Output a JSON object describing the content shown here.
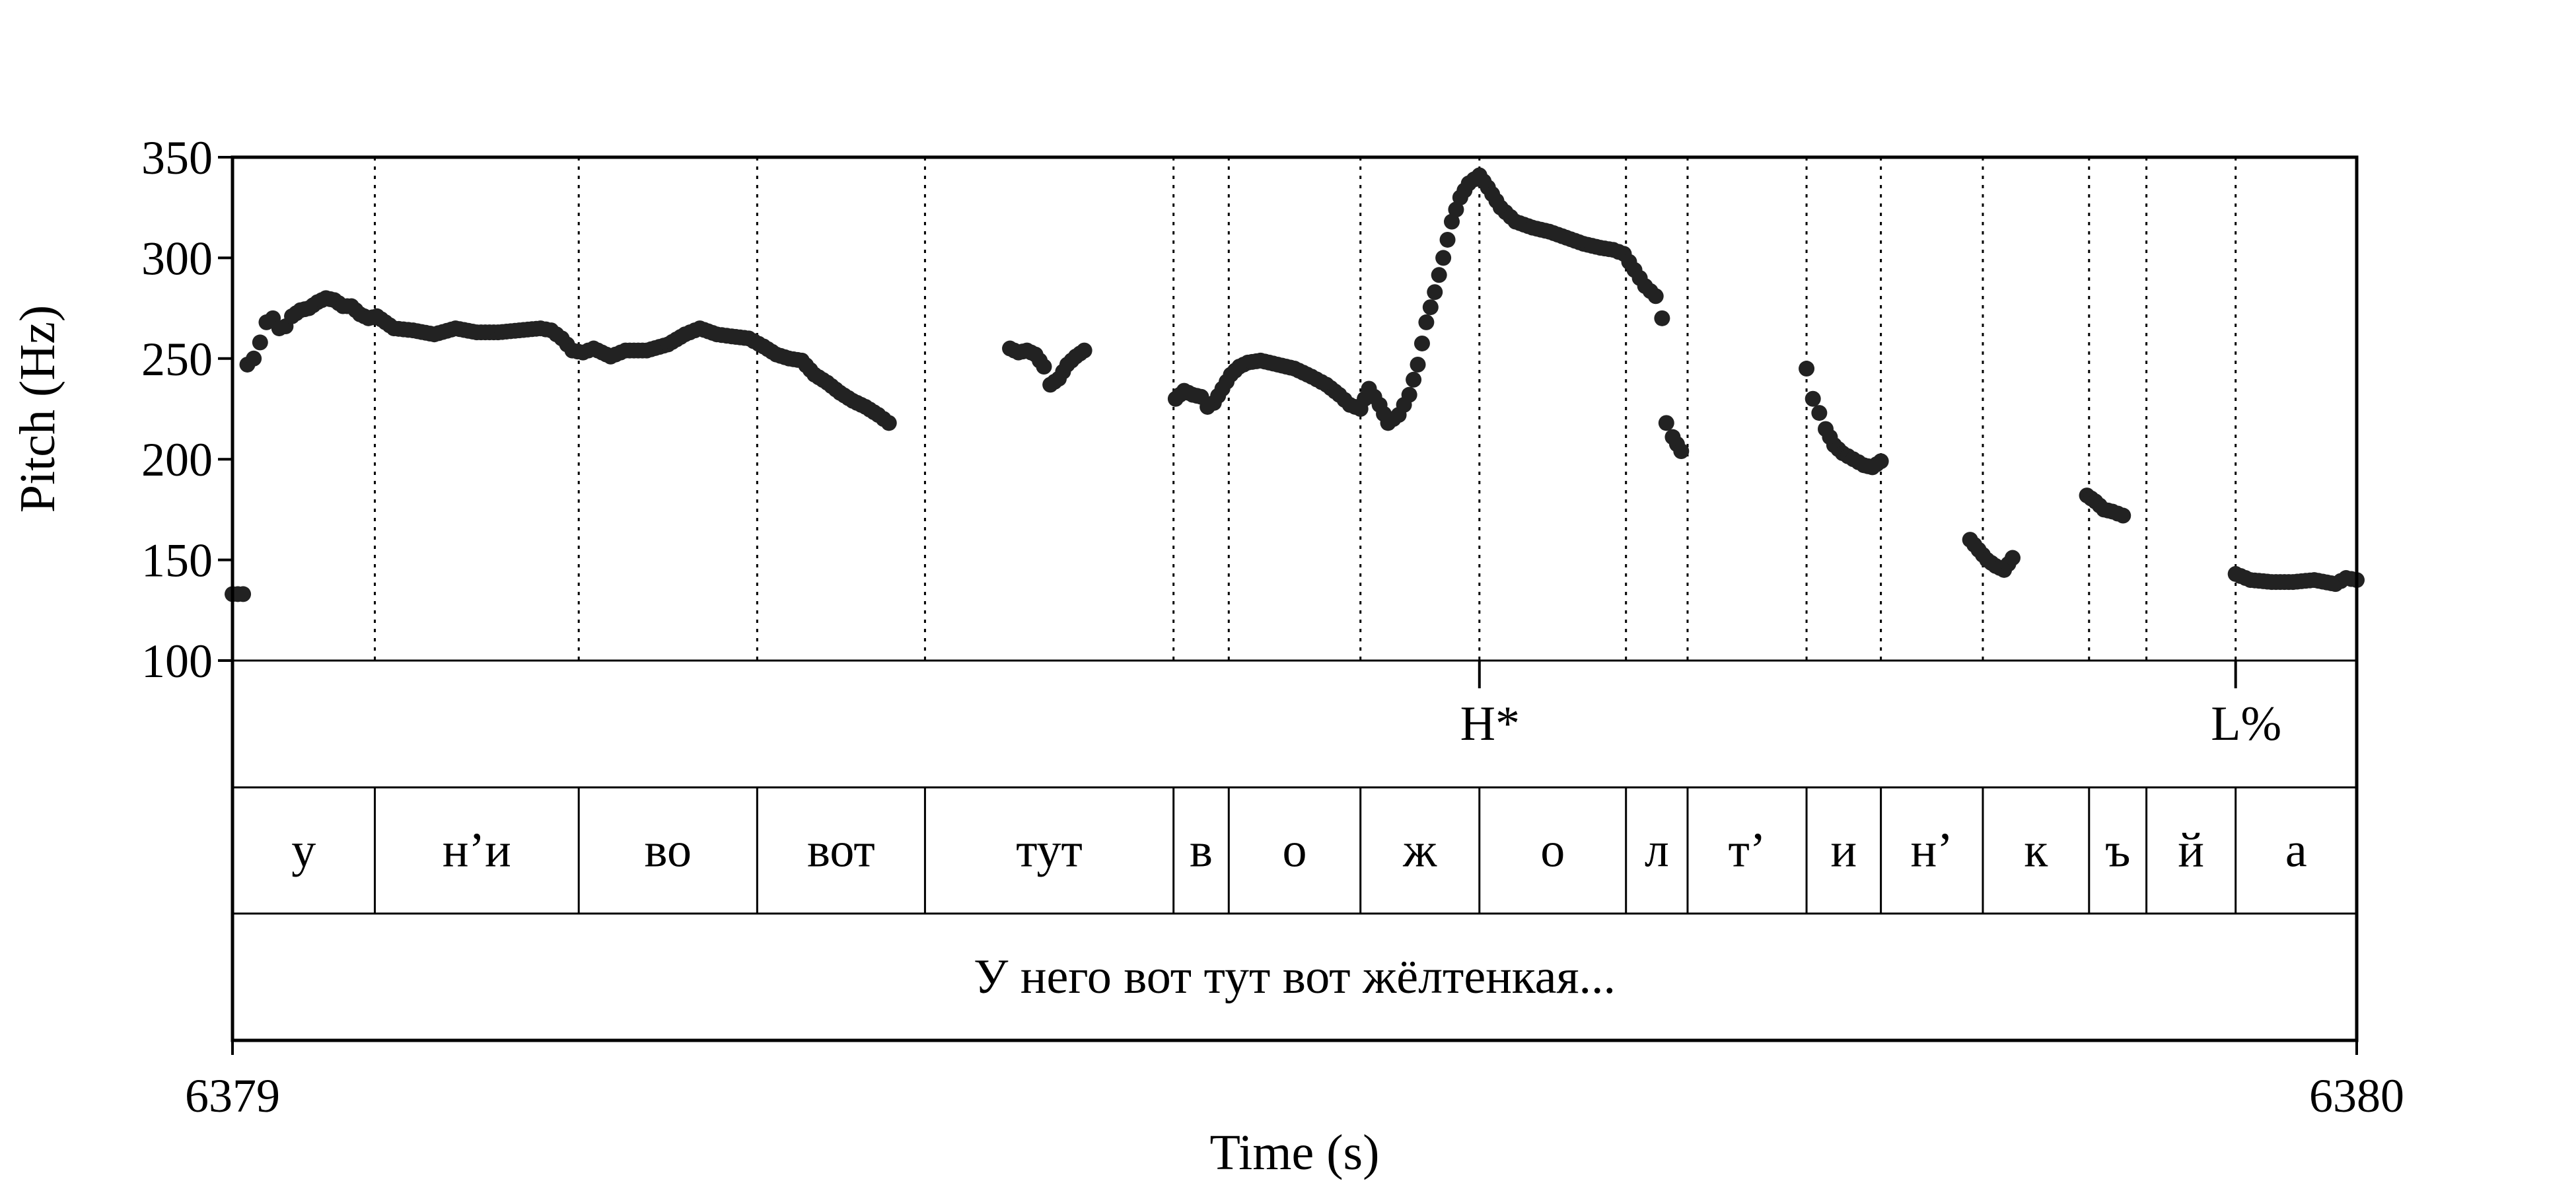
{
  "chart_data": {
    "type": "scatter",
    "xlabel": "Time (s)",
    "ylabel": "Pitch (Hz)",
    "xlim": [
      6379,
      6380
    ],
    "ylim": [
      100,
      350
    ],
    "x_ticks": [
      "6379",
      "6380"
    ],
    "y_ticks": [
      100,
      150,
      200,
      250,
      300,
      350
    ],
    "tones": [
      {
        "label": "H*",
        "t": 6379.587
      },
      {
        "label": "L%",
        "t": 6379.943
      }
    ],
    "segments": [
      {
        "label": "у",
        "start": 6379.0,
        "end": 6379.067
      },
      {
        "label": "н’и",
        "start": 6379.067,
        "end": 6379.163
      },
      {
        "label": "во",
        "start": 6379.163,
        "end": 6379.247
      },
      {
        "label": "вот",
        "start": 6379.247,
        "end": 6379.326
      },
      {
        "label": "тут",
        "start": 6379.326,
        "end": 6379.443
      },
      {
        "label": "в",
        "start": 6379.443,
        "end": 6379.469
      },
      {
        "label": "о",
        "start": 6379.469,
        "end": 6379.531
      },
      {
        "label": "ж",
        "start": 6379.531,
        "end": 6379.587
      },
      {
        "label": "о",
        "start": 6379.587,
        "end": 6379.656
      },
      {
        "label": "л",
        "start": 6379.656,
        "end": 6379.685
      },
      {
        "label": "т’",
        "start": 6379.685,
        "end": 6379.741
      },
      {
        "label": "и",
        "start": 6379.741,
        "end": 6379.776
      },
      {
        "label": "н’",
        "start": 6379.776,
        "end": 6379.824
      },
      {
        "label": "к",
        "start": 6379.824,
        "end": 6379.874
      },
      {
        "label": "ъ",
        "start": 6379.874,
        "end": 6379.901
      },
      {
        "label": "й",
        "start": 6379.901,
        "end": 6379.943
      },
      {
        "label": "а",
        "start": 6379.943,
        "end": 6380.0
      }
    ],
    "sentence": "У него вот тут вот жёлтенкая...",
    "pitch_runs": [
      {
        "points": [
          [
            6379.0,
            133
          ],
          [
            6379.005,
            133
          ]
        ]
      },
      {
        "points": [
          [
            6379.007,
            247
          ],
          [
            6379.01,
            250
          ],
          [
            6379.013,
            258
          ],
          [
            6379.016,
            268
          ],
          [
            6379.019,
            270
          ],
          [
            6379.022,
            265
          ],
          [
            6379.025,
            266
          ],
          [
            6379.028,
            271
          ],
          [
            6379.032,
            274
          ],
          [
            6379.036,
            275
          ],
          [
            6379.04,
            278
          ],
          [
            6379.044,
            280
          ],
          [
            6379.048,
            279
          ],
          [
            6379.052,
            276
          ],
          [
            6379.056,
            276
          ],
          [
            6379.06,
            272
          ],
          [
            6379.064,
            270
          ],
          [
            6379.068,
            271
          ],
          [
            6379.072,
            268
          ],
          [
            6379.076,
            265
          ],
          [
            6379.085,
            264
          ],
          [
            6379.095,
            262
          ],
          [
            6379.105,
            265
          ],
          [
            6379.115,
            263
          ],
          [
            6379.125,
            263
          ],
          [
            6379.135,
            264
          ],
          [
            6379.145,
            265
          ],
          [
            6379.15,
            264
          ],
          [
            6379.155,
            260
          ],
          [
            6379.16,
            254
          ],
          [
            6379.165,
            253
          ],
          [
            6379.17,
            255
          ],
          [
            6379.178,
            251
          ],
          [
            6379.185,
            254
          ],
          [
            6379.195,
            254
          ],
          [
            6379.205,
            257
          ],
          [
            6379.213,
            262
          ],
          [
            6379.22,
            265
          ],
          [
            6379.228,
            262
          ],
          [
            6379.235,
            261
          ],
          [
            6379.243,
            260
          ],
          [
            6379.25,
            256
          ],
          [
            6379.256,
            252
          ],
          [
            6379.262,
            250
          ],
          [
            6379.268,
            249
          ],
          [
            6379.274,
            242
          ],
          [
            6379.28,
            238
          ],
          [
            6379.286,
            233
          ],
          [
            6379.292,
            229
          ],
          [
            6379.298,
            226
          ],
          [
            6379.304,
            222
          ],
          [
            6379.309,
            218
          ]
        ]
      },
      {
        "points": [
          [
            6379.366,
            255
          ],
          [
            6379.37,
            253
          ],
          [
            6379.374,
            254
          ],
          [
            6379.378,
            252
          ],
          [
            6379.382,
            246
          ],
          [
            6379.385,
            237
          ],
          [
            6379.389,
            240
          ],
          [
            6379.393,
            247
          ],
          [
            6379.397,
            251
          ],
          [
            6379.401,
            254
          ]
        ]
      },
      {
        "points": [
          [
            6379.444,
            230
          ],
          [
            6379.448,
            234
          ],
          [
            6379.452,
            232
          ],
          [
            6379.456,
            231
          ],
          [
            6379.459,
            226
          ],
          [
            6379.462,
            228
          ],
          [
            6379.466,
            235
          ],
          [
            6379.47,
            242
          ],
          [
            6379.474,
            246
          ],
          [
            6379.478,
            248
          ],
          [
            6379.484,
            249
          ],
          [
            6379.492,
            247
          ],
          [
            6379.5,
            245
          ],
          [
            6379.508,
            241
          ],
          [
            6379.515,
            237
          ],
          [
            6379.521,
            232
          ],
          [
            6379.526,
            227
          ],
          [
            6379.531,
            225
          ],
          [
            6379.535,
            235
          ],
          [
            6379.54,
            227
          ],
          [
            6379.544,
            218
          ],
          [
            6379.549,
            222
          ],
          [
            6379.554,
            232
          ],
          [
            6379.558,
            247
          ],
          [
            6379.562,
            268
          ],
          [
            6379.566,
            283
          ],
          [
            6379.57,
            300
          ],
          [
            6379.574,
            318
          ],
          [
            6379.578,
            330
          ],
          [
            6379.582,
            337
          ],
          [
            6379.587,
            341
          ],
          [
            6379.591,
            335
          ],
          [
            6379.597,
            325
          ],
          [
            6379.604,
            318
          ],
          [
            6379.612,
            315
          ],
          [
            6379.62,
            313
          ],
          [
            6379.628,
            310
          ],
          [
            6379.636,
            307
          ],
          [
            6379.644,
            305
          ],
          [
            6379.65,
            304
          ],
          [
            6379.655,
            302
          ],
          [
            6379.66,
            294
          ],
          [
            6379.665,
            286
          ],
          [
            6379.67,
            281
          ],
          [
            6379.673,
            270
          ],
          [
            6379.675,
            218
          ],
          [
            6379.678,
            211
          ],
          [
            6379.682,
            204
          ]
        ]
      },
      {
        "points": [
          [
            6379.741,
            245
          ],
          [
            6379.744,
            230
          ],
          [
            6379.747,
            223
          ],
          [
            6379.75,
            215
          ],
          [
            6379.754,
            207
          ],
          [
            6379.758,
            203
          ],
          [
            6379.763,
            200
          ],
          [
            6379.768,
            197
          ],
          [
            6379.772,
            196
          ],
          [
            6379.776,
            199
          ]
        ]
      },
      {
        "points": [
          [
            6379.818,
            160
          ],
          [
            6379.822,
            155
          ],
          [
            6379.826,
            150
          ],
          [
            6379.83,
            147
          ],
          [
            6379.834,
            145
          ],
          [
            6379.838,
            151
          ]
        ]
      },
      {
        "points": [
          [
            6379.873,
            182
          ],
          [
            6379.877,
            179
          ],
          [
            6379.881,
            175
          ],
          [
            6379.885,
            174
          ],
          [
            6379.89,
            172
          ]
        ]
      },
      {
        "points": [
          [
            6379.943,
            143
          ],
          [
            6379.95,
            140
          ],
          [
            6379.96,
            139
          ],
          [
            6379.97,
            139
          ],
          [
            6379.98,
            140
          ],
          [
            6379.99,
            138
          ],
          [
            6379.995,
            141
          ],
          [
            6380.0,
            140
          ]
        ]
      }
    ]
  }
}
